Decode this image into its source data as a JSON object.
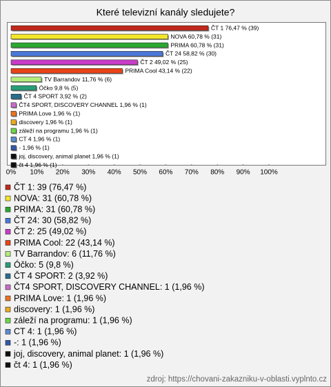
{
  "chart_data": {
    "type": "bar",
    "orientation": "horizontal",
    "title": "Které televizní kanály sledujete?",
    "categories": [
      "ČT 1",
      "NOVA",
      "PRIMA",
      "ČT 24",
      "ČT 2",
      "PRIMA Cool",
      "TV Barrandov",
      "Óčko",
      "ČT 4 SPORT",
      "ČT4 SPORT, DISCOVERY CHANNEL",
      "PRIMA Love",
      "discovery",
      "záleží na programu",
      "CT 4",
      "-",
      "joj, discovery, animal planet",
      "čt 4"
    ],
    "values": [
      76.47,
      60.78,
      60.78,
      58.82,
      49.02,
      43.14,
      11.76,
      9.8,
      3.92,
      1.96,
      1.96,
      1.96,
      1.96,
      1.96,
      1.96,
      1.96,
      1.96
    ],
    "value_labels": [
      "ČT 1 76,47 % (39)",
      "NOVA 60,78 % (31)",
      "PRIMA 60,78 % (31)",
      "ČT 24 58,82 % (30)",
      "ČT 2 49,02 % (25)",
      "PRIMA Cool 43,14 % (22)",
      "TV Barrandov 11,76 % (6)",
      "Óčko 9,8 % (5)",
      "ČT 4 SPORT 3,92 % (2)",
      "ČT4 SPORT, DISCOVERY CHANNEL 1,96 % (1)",
      "PRIMA Love 1,96 % (1)",
      "discovery 1,96 % (1)",
      "záleží na programu 1,96 % (1)",
      "CT 4 1,96 % (1)",
      "- 1,96 % (1)",
      "joj, discovery, animal planet 1,96 % (1)",
      "čt 4 1,96 % (1)"
    ],
    "legend_labels": [
      "ČT 1: 39 (76,47 %)",
      "NOVA: 31 (60,78 %)",
      "PRIMA: 31 (60,78 %)",
      "ČT 24: 30 (58,82 %)",
      "ČT 2: 25 (49,02 %)",
      "PRIMA Cool: 22 (43,14 %)",
      "TV Barrandov: 6 (11,76 %)",
      "Óčko: 5 (9,8 %)",
      "ČT 4 SPORT: 2 (3,92 %)",
      "ČT4 SPORT, DISCOVERY CHANNEL: 1 (1,96 %)",
      "PRIMA Love: 1 (1,96 %)",
      "discovery: 1 (1,96 %)",
      "záleží na programu: 1 (1,96 %)",
      "CT 4: 1 (1,96 %)",
      "-: 1 (1,96 %)",
      "joj, discovery, animal planet: 1 (1,96 %)",
      "čt 4: 1 (1,96 %)"
    ],
    "colors": [
      "#c0281c",
      "#f2e62a",
      "#2aa832",
      "#4a78d8",
      "#c83cc8",
      "#e84418",
      "#b4ec7c",
      "#2a9c78",
      "#2a6c8c",
      "#c86cc8",
      "#ec7420",
      "#ecaa24",
      "#6cd848",
      "#5c8cd0",
      "#3458a8",
      "#101010",
      "#101010"
    ],
    "xlim": [
      0,
      100
    ],
    "xticks": [
      {
        "value": 0,
        "label": "0%"
      },
      {
        "value": 10,
        "label": "10%"
      },
      {
        "value": 20,
        "label": "20%"
      },
      {
        "value": 30,
        "label": "30%"
      },
      {
        "value": 40,
        "label": "40%"
      },
      {
        "value": 50,
        "label": "50%"
      },
      {
        "value": 60,
        "label": "60%"
      },
      {
        "value": 70,
        "label": "70%"
      },
      {
        "value": 80,
        "label": "80%"
      },
      {
        "value": 90,
        "label": "90%"
      },
      {
        "value": 100,
        "label": "100%"
      }
    ],
    "source": "zdroj: https://chovani-zakazniku-v-oblasti.vyplnto.cz"
  }
}
